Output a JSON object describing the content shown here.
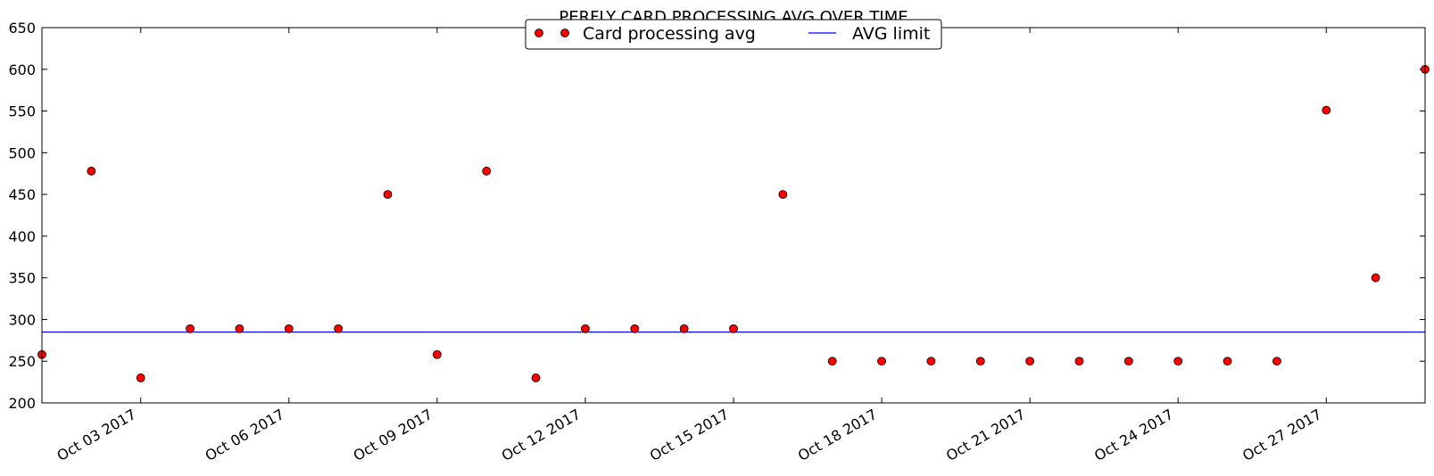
{
  "chart_data": {
    "type": "scatter",
    "title": "PERFLY CARD PROCESSING AVG OVER TIME",
    "xlabel": "",
    "ylabel": "",
    "x_dates": [
      "2017-10-01",
      "2017-10-02",
      "2017-10-03",
      "2017-10-04",
      "2017-10-05",
      "2017-10-06",
      "2017-10-07",
      "2017-10-08",
      "2017-10-09",
      "2017-10-10",
      "2017-10-11",
      "2017-10-12",
      "2017-10-13",
      "2017-10-14",
      "2017-10-15",
      "2017-10-16",
      "2017-10-17",
      "2017-10-18",
      "2017-10-19",
      "2017-10-20",
      "2017-10-21",
      "2017-10-22",
      "2017-10-23",
      "2017-10-24",
      "2017-10-25",
      "2017-10-26",
      "2017-10-27",
      "2017-10-28",
      "2017-10-29"
    ],
    "series": [
      {
        "name": "Card processing avg",
        "kind": "markers",
        "color": "#ff0000",
        "values": [
          258,
          478,
          230,
          289,
          289,
          289,
          289,
          450,
          258,
          478,
          230,
          289,
          289,
          289,
          289,
          450,
          250,
          250,
          250,
          250,
          250,
          250,
          250,
          250,
          250,
          250,
          551,
          350,
          600
        ]
      },
      {
        "name": "AVG limit",
        "kind": "line",
        "color": "#0000ff",
        "value": 285
      }
    ],
    "ylim": [
      200,
      650
    ],
    "yticks": [
      200,
      250,
      300,
      350,
      400,
      450,
      500,
      550,
      600,
      650
    ],
    "xticks": [
      {
        "date": "2017-10-03",
        "label": "Oct 03 2017"
      },
      {
        "date": "2017-10-06",
        "label": "Oct 06 2017"
      },
      {
        "date": "2017-10-09",
        "label": "Oct 09 2017"
      },
      {
        "date": "2017-10-12",
        "label": "Oct 12 2017"
      },
      {
        "date": "2017-10-15",
        "label": "Oct 15 2017"
      },
      {
        "date": "2017-10-18",
        "label": "Oct 18 2017"
      },
      {
        "date": "2017-10-21",
        "label": "Oct 21 2017"
      },
      {
        "date": "2017-10-24",
        "label": "Oct 24 2017"
      },
      {
        "date": "2017-10-27",
        "label": "Oct 27 2017"
      }
    ],
    "grid": false,
    "legend_position": "top-center"
  }
}
